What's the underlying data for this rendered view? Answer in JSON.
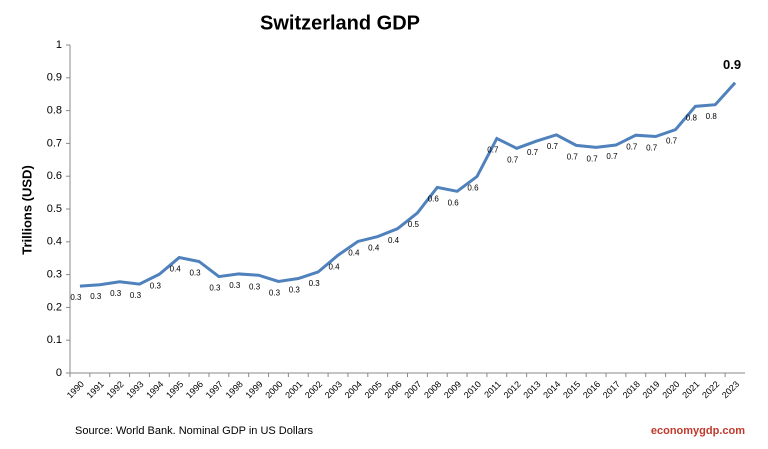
{
  "chart_data": {
    "type": "line",
    "title": "Switzerland GDP",
    "y_label": "Trillions (USD)",
    "source": "Source: World Bank.  Nominal GDP  in US Dollars",
    "watermark": "economygdp.com",
    "categories": [
      "1990",
      "1991",
      "1992",
      "1993",
      "1994",
      "1995",
      "1996",
      "1997",
      "1998",
      "1999",
      "2000",
      "2001",
      "2002",
      "2003",
      "2004",
      "2005",
      "2006",
      "2007",
      "2008",
      "2009",
      "2010",
      "2011",
      "2012",
      "2013",
      "2014",
      "2015",
      "2016",
      "2017",
      "2018",
      "2019",
      "2020",
      "2021",
      "2022",
      "2023"
    ],
    "series": [
      {
        "name": "GDP",
        "color": "#4f81bd",
        "values": [
          0.265,
          0.269,
          0.278,
          0.271,
          0.301,
          0.352,
          0.34,
          0.294,
          0.302,
          0.298,
          0.279,
          0.288,
          0.308,
          0.359,
          0.401,
          0.416,
          0.44,
          0.488,
          0.566,
          0.554,
          0.599,
          0.715,
          0.685,
          0.707,
          0.726,
          0.694,
          0.688,
          0.695,
          0.725,
          0.721,
          0.742,
          0.813,
          0.818,
          0.885
        ],
        "value_labels": [
          "0.3",
          "0.3",
          "0.3",
          "0.3",
          "0.3",
          "0.4",
          "0.3",
          "0.3",
          "0.3",
          "0.3",
          "0.3",
          "0.3",
          "0.3",
          "0.4",
          "0.4",
          "0.4",
          "0.4",
          "0.5",
          "0.6",
          "0.6",
          "0.6",
          "0.7",
          "0.7",
          "0.7",
          "0.7",
          "0.7",
          "0.7",
          "0.7",
          "0.7",
          "0.7",
          "0.7",
          "0.8",
          "0.8",
          "0.9"
        ]
      }
    ],
    "ylim": [
      0,
      1
    ],
    "yticks": [
      0,
      0.1,
      0.2,
      0.3,
      0.4,
      0.5,
      0.6,
      0.7,
      0.8,
      0.9,
      1
    ],
    "grid": false
  }
}
